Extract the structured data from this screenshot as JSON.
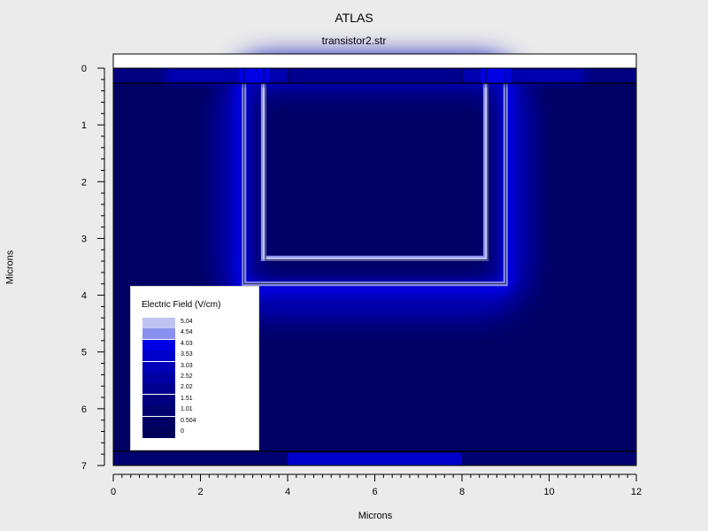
{
  "chart_data": {
    "type": "heatmap",
    "title": "ATLAS",
    "subtitle": "transistor2.str",
    "xlabel": "Microns",
    "ylabel": "Microns",
    "xlim": [
      0,
      12
    ],
    "ylim": [
      0,
      7
    ],
    "y_inverted": true,
    "x_ticks": [
      "0",
      "2",
      "4",
      "6",
      "8",
      "10",
      "12"
    ],
    "y_ticks": [
      "0",
      "1",
      "2",
      "3",
      "4",
      "5",
      "6",
      "7"
    ],
    "grid": false,
    "legend": {
      "title": "Electric Field (V/cm)",
      "placement": "bottom-left",
      "levels": [
        {
          "value": "5.04",
          "color": "#c0c4f2"
        },
        {
          "value": "4.54",
          "color": "#8a90ee"
        },
        {
          "value": "4.03",
          "color": "#0000e4"
        },
        {
          "value": "3.53",
          "color": "#0000cd"
        },
        {
          "value": "3.03",
          "color": "#0000b8"
        },
        {
          "value": "2.52",
          "color": "#0000a3"
        },
        {
          "value": "2.02",
          "color": "#00008f"
        },
        {
          "value": "1.51",
          "color": "#000080"
        },
        {
          "value": "1.01",
          "color": "#000070"
        },
        {
          "value": "0.504",
          "color": "#000064"
        },
        {
          "value": "0",
          "color": "#000058"
        }
      ]
    },
    "regions": {
      "background_level": "0.504",
      "surface_oxide": {
        "x": [
          0,
          12
        ],
        "y": [
          0,
          -0.25
        ],
        "color": "#ffffff"
      },
      "trench_outer_edge": {
        "x": [
          3.0,
          9.0
        ],
        "y": [
          0.25,
          3.8
        ]
      },
      "trench_inner_edge": {
        "x": [
          3.45,
          8.55
        ],
        "y": [
          0.25,
          3.35
        ]
      },
      "surface_contacts": [
        {
          "x": [
            3.0,
            3.45
          ],
          "label_level": "4.03"
        },
        {
          "x": [
            8.55,
            9.0
          ],
          "label_level": "4.03"
        }
      ],
      "bottom_contact": {
        "x": [
          4.0,
          8.0
        ],
        "y": [
          6.75,
          7.0
        ]
      }
    }
  }
}
